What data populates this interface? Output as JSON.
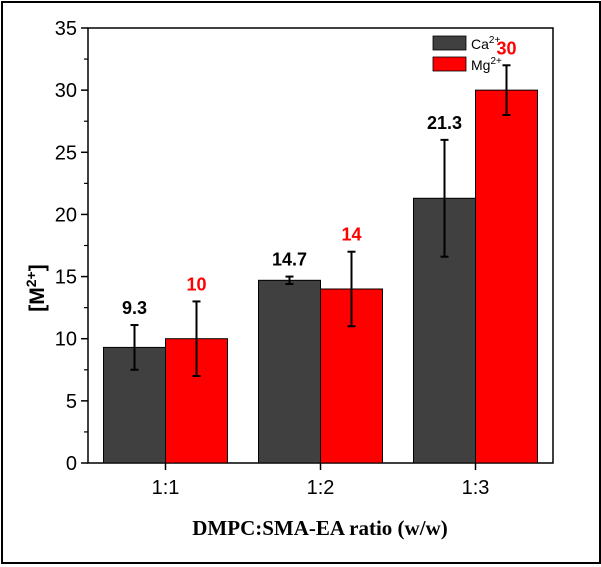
{
  "chart_data": {
    "type": "bar",
    "categories": [
      "1:1",
      "1:2",
      "1:3"
    ],
    "series": [
      {
        "name": "Ca",
        "name_sup": "2+",
        "color": "#404040",
        "label_color": "#000000",
        "values": [
          9.3,
          14.7,
          21.3
        ],
        "errors": [
          1.8,
          0.3,
          4.7
        ],
        "labels": [
          "9.3",
          "14.7",
          "21.3"
        ]
      },
      {
        "name": "Mg",
        "name_sup": "2+",
        "color": "#ff0000",
        "label_color": "#ff0000",
        "values": [
          10,
          14,
          30
        ],
        "errors": [
          3,
          3,
          2
        ],
        "labels": [
          "10",
          "14",
          "30"
        ]
      }
    ],
    "xlabel": "DMPC:SMA-EA ratio (w/w)",
    "ylabel_base": "[M",
    "ylabel_sup": "2+",
    "ylabel_end": "]",
    "ylim": [
      0,
      35
    ],
    "yticks": [
      0,
      5,
      10,
      15,
      20,
      25,
      30,
      35
    ],
    "legend_position": "top-right",
    "grid": false
  }
}
